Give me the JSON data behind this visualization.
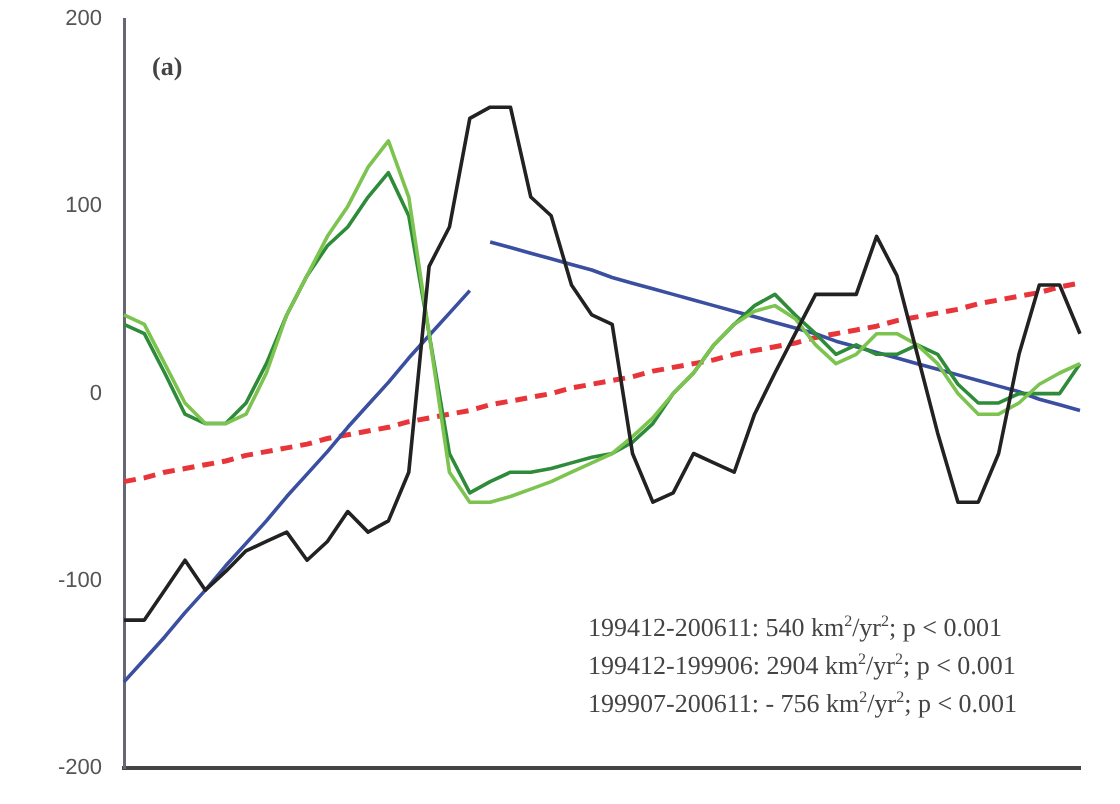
{
  "chart_data": {
    "type": "line",
    "categories": [
      null,
      null,
      null,
      null,
      null,
      null,
      null,
      null,
      null,
      null,
      null,
      null,
      null,
      null,
      null,
      null,
      null,
      null,
      null,
      null,
      null,
      null,
      null,
      null,
      null,
      null,
      null,
      null,
      null,
      null,
      null,
      null,
      null,
      null,
      null,
      null,
      null,
      null,
      null,
      null,
      null,
      null,
      null,
      null,
      null,
      null,
      null,
      null
    ],
    "series": [
      {
        "color": "#222222",
        "values": [
          -121,
          -121,
          -105,
          -89,
          -105,
          -95,
          -84,
          -79,
          -74,
          -89,
          -79,
          -63,
          -74,
          -68,
          -42,
          68,
          89,
          147,
          153,
          153,
          105,
          95,
          58,
          42,
          37,
          -32,
          -58,
          -53,
          -32,
          -37,
          -42,
          -11,
          11,
          32,
          53,
          53,
          53,
          84,
          63,
          21,
          -21,
          -58,
          -58,
          -32,
          21,
          58,
          58,
          32
        ]
      },
      {
        "color": "#7cc44f",
        "values": [
          42,
          37,
          16,
          -5,
          -16,
          -16,
          -11,
          11,
          42,
          63,
          84,
          100,
          121,
          135,
          105,
          32,
          -42,
          -58,
          -58,
          -55,
          -51,
          -47,
          -42,
          -37,
          -32,
          -23,
          -13,
          0,
          11,
          26,
          37,
          44,
          47,
          40,
          26,
          16,
          21,
          32,
          32,
          26,
          16,
          0,
          -11,
          -11,
          -5,
          5,
          11,
          16
        ]
      },
      {
        "color": "#2e8b3a",
        "values": [
          37,
          32,
          11,
          -11,
          -16,
          -16,
          -5,
          16,
          42,
          63,
          79,
          89,
          105,
          118,
          95,
          32,
          -32,
          -53,
          -47,
          -42,
          -42,
          -40,
          -37,
          -34,
          -32,
          -26,
          -16,
          0,
          11,
          26,
          37,
          47,
          53,
          42,
          32,
          21,
          26,
          21,
          21,
          26,
          21,
          5,
          -5,
          -5,
          0,
          0,
          0,
          16
        ]
      },
      {
        "color": "#3a4fa0",
        "values": [
          -154,
          -142,
          -130,
          -117,
          -105,
          -92,
          -80,
          -68,
          -55,
          -43,
          -31,
          -18,
          -6,
          6,
          19,
          31,
          43,
          55,
          null,
          null,
          null,
          null,
          null,
          null,
          null,
          null,
          null,
          null,
          null,
          null,
          null,
          null,
          null,
          null,
          null,
          null,
          null,
          null,
          null,
          null,
          null,
          null,
          null,
          null,
          null,
          null,
          null,
          null
        ]
      },
      {
        "color": "#3a4fa0",
        "values": [
          null,
          null,
          null,
          null,
          null,
          null,
          null,
          null,
          null,
          null,
          null,
          null,
          null,
          null,
          null,
          null,
          null,
          null,
          81,
          78,
          75,
          72,
          69,
          66,
          62,
          59,
          56,
          53,
          50,
          47,
          44,
          41,
          38,
          35,
          32,
          28,
          25,
          22,
          19,
          16,
          13,
          10,
          7,
          4,
          1,
          -3,
          -6,
          -9
        ]
      },
      {
        "color": "#e8353a",
        "line_style": "dashed",
        "values": [
          -47,
          -45,
          -42,
          -40,
          -38,
          -36,
          -33,
          -31,
          -29,
          -27,
          -24,
          -22,
          -20,
          -18,
          -15,
          -13,
          -11,
          -9,
          -6,
          -4,
          -2,
          0,
          3,
          5,
          7,
          9,
          12,
          14,
          16,
          18,
          21,
          23,
          25,
          27,
          30,
          32,
          34,
          36,
          39,
          41,
          43,
          45,
          48,
          50,
          52,
          54,
          57,
          59
        ]
      }
    ],
    "ylim": [
      -200,
      200
    ],
    "yticks": [
      -200,
      -100,
      0,
      100,
      200
    ],
    "grid": false,
    "tick_labels": "y",
    "marker": "none",
    "legend": false,
    "annotations": [
      "(a)",
      "199412-200611: 540 km$^{2}$/yr$^{2}$; p < 0.001",
      "199412-199906: 2904 km$^{2}$/yr$^{2}$; p < 0.001",
      "199907-200611: - 756 km$^{2}$/yr$^{2}$; p < 0.001"
    ]
  }
}
